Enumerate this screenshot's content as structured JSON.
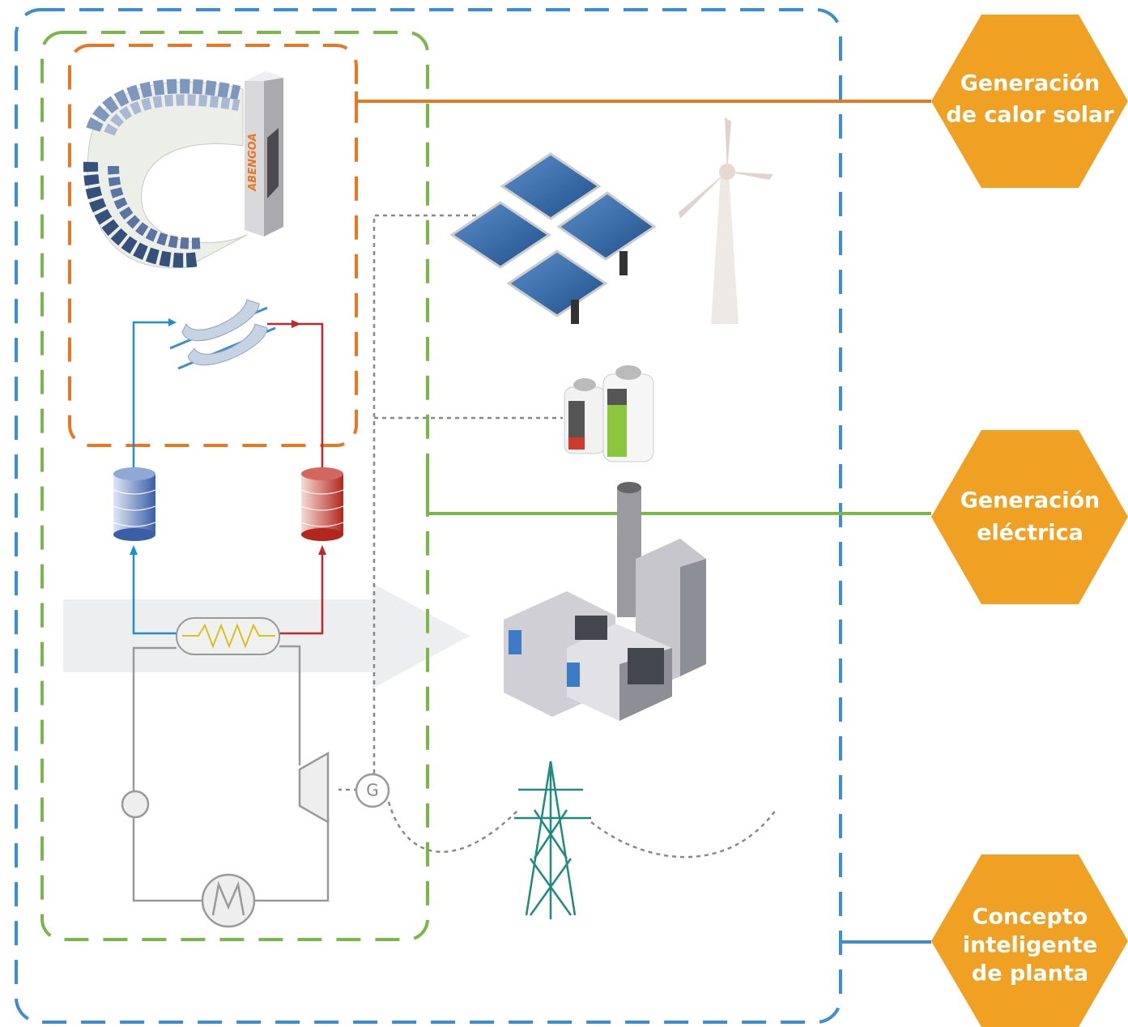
{
  "labels": [
    {
      "lines": [
        "Generación",
        "de calor solar"
      ]
    },
    {
      "lines": [
        "Generación",
        "eléctrica"
      ]
    },
    {
      "lines": [
        "Concepto",
        "inteligente",
        "de planta"
      ]
    }
  ],
  "tower_brand": "ABENGOA",
  "generator": "G"
}
